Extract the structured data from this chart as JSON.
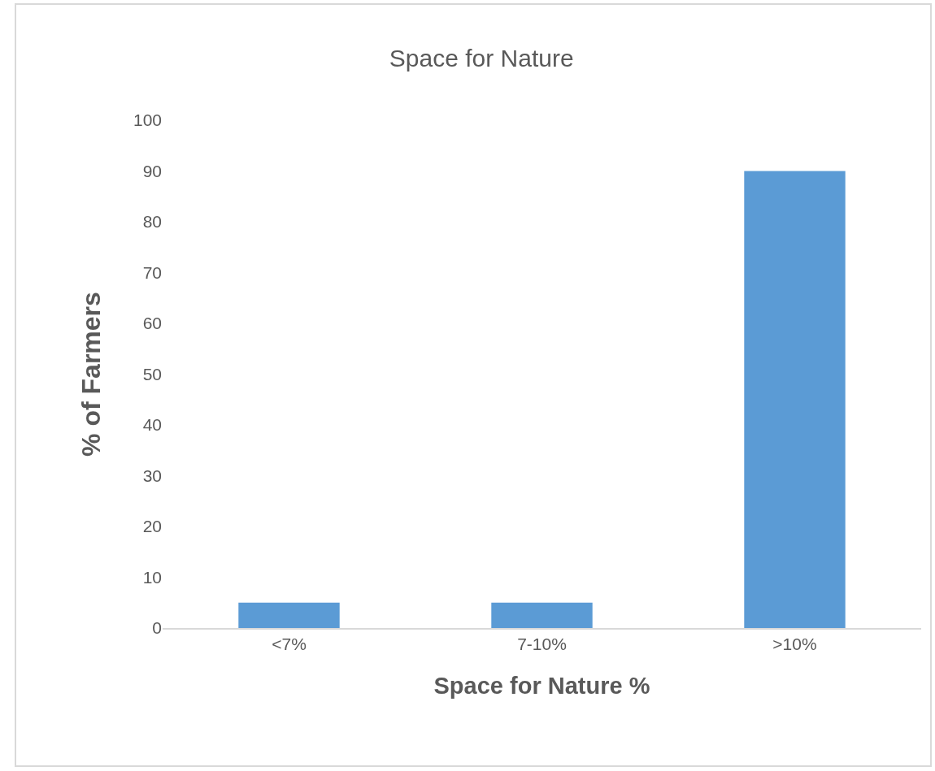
{
  "chart_data": {
    "type": "bar",
    "title": "Space for Nature",
    "xlabel": "Space for Nature %",
    "ylabel": "% of Farmers",
    "categories": [
      "<7%",
      "7-10%",
      ">10%"
    ],
    "values": [
      5,
      5,
      90
    ],
    "color": "#5b9bd5",
    "ylim": [
      0,
      100
    ],
    "yticks": [
      0,
      10,
      20,
      30,
      40,
      50,
      60,
      70,
      80,
      90,
      100
    ],
    "grid": false
  }
}
